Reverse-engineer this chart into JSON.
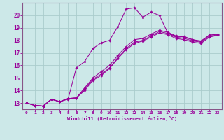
{
  "xlabel": "Windchill (Refroidissement éolien,°C)",
  "bg_color": "#cce8e8",
  "grid_color": "#aacccc",
  "line_color": "#990099",
  "spine_color": "#885588",
  "xlim": [
    -0.5,
    23.5
  ],
  "ylim": [
    12.5,
    21.0
  ],
  "xticks": [
    0,
    1,
    2,
    3,
    4,
    5,
    6,
    7,
    8,
    9,
    10,
    11,
    12,
    13,
    14,
    15,
    16,
    17,
    18,
    19,
    20,
    21,
    22,
    23
  ],
  "yticks": [
    13,
    14,
    15,
    16,
    17,
    18,
    19,
    20
  ],
  "series": [
    {
      "x": [
        0,
        1,
        2,
        3,
        4,
        5,
        6,
        7,
        8,
        9,
        10,
        11,
        12,
        13,
        14,
        15,
        16,
        17,
        18,
        19,
        20,
        21,
        22,
        23
      ],
      "y": [
        13.0,
        12.8,
        12.75,
        13.3,
        13.1,
        13.3,
        15.8,
        16.3,
        17.35,
        17.8,
        18.0,
        19.1,
        20.5,
        20.6,
        19.85,
        20.25,
        20.0,
        18.6,
        18.3,
        18.3,
        18.05,
        17.9,
        18.4,
        18.5
      ]
    },
    {
      "x": [
        0,
        1,
        2,
        3,
        4,
        5,
        6,
        7,
        8,
        9,
        10,
        11,
        12,
        13,
        14,
        15,
        16,
        17,
        18,
        19,
        20,
        21,
        22,
        23
      ],
      "y": [
        13.0,
        12.8,
        12.75,
        13.3,
        13.1,
        13.35,
        13.4,
        14.2,
        15.0,
        15.5,
        16.0,
        16.8,
        17.5,
        18.05,
        18.15,
        18.5,
        18.8,
        18.65,
        18.35,
        18.25,
        18.05,
        17.95,
        18.4,
        18.5
      ]
    },
    {
      "x": [
        0,
        1,
        2,
        3,
        4,
        5,
        6,
        7,
        8,
        9,
        10,
        11,
        12,
        13,
        14,
        15,
        16,
        17,
        18,
        19,
        20,
        21,
        22,
        23
      ],
      "y": [
        13.0,
        12.8,
        12.75,
        13.3,
        13.1,
        13.35,
        13.4,
        14.1,
        14.9,
        15.3,
        15.8,
        16.6,
        17.35,
        17.85,
        18.0,
        18.35,
        18.7,
        18.55,
        18.25,
        18.15,
        17.95,
        17.85,
        18.3,
        18.45
      ]
    },
    {
      "x": [
        0,
        1,
        2,
        3,
        4,
        5,
        6,
        7,
        8,
        9,
        10,
        11,
        12,
        13,
        14,
        15,
        16,
        17,
        18,
        19,
        20,
        21,
        22,
        23
      ],
      "y": [
        13.0,
        12.8,
        12.75,
        13.3,
        13.1,
        13.35,
        13.4,
        14.0,
        14.8,
        15.2,
        15.75,
        16.55,
        17.25,
        17.75,
        17.95,
        18.25,
        18.6,
        18.45,
        18.15,
        18.05,
        17.85,
        17.75,
        18.25,
        18.4
      ]
    }
  ]
}
